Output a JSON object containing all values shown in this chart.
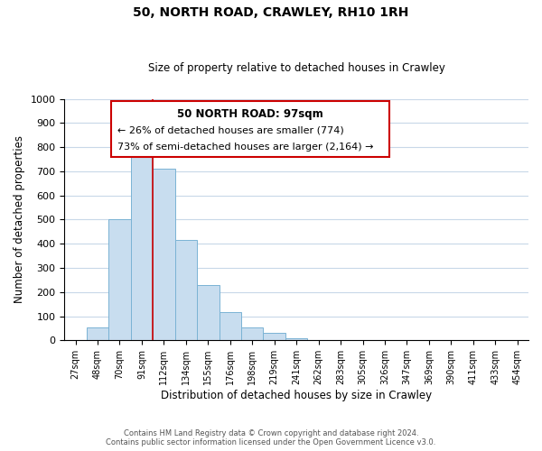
{
  "title": "50, NORTH ROAD, CRAWLEY, RH10 1RH",
  "subtitle": "Size of property relative to detached houses in Crawley",
  "xlabel": "Distribution of detached houses by size in Crawley",
  "ylabel": "Number of detached properties",
  "bin_labels": [
    "27sqm",
    "48sqm",
    "70sqm",
    "91sqm",
    "112sqm",
    "134sqm",
    "155sqm",
    "176sqm",
    "198sqm",
    "219sqm",
    "241sqm",
    "262sqm",
    "283sqm",
    "305sqm",
    "326sqm",
    "347sqm",
    "369sqm",
    "390sqm",
    "411sqm",
    "433sqm",
    "454sqm"
  ],
  "bar_values": [
    0,
    55,
    500,
    820,
    710,
    415,
    230,
    118,
    55,
    32,
    10,
    0,
    0,
    0,
    0,
    0,
    0,
    0,
    0,
    0,
    0
  ],
  "bar_color": "#c8ddef",
  "bar_edge_color": "#7ab3d4",
  "ylim": [
    0,
    1000
  ],
  "yticks": [
    0,
    100,
    200,
    300,
    400,
    500,
    600,
    700,
    800,
    900,
    1000
  ],
  "vline_x_index": 3.5,
  "vline_color": "#cc0000",
  "annotation_lines": [
    "50 NORTH ROAD: 97sqm",
    "← 26% of detached houses are smaller (774)",
    "73% of semi-detached houses are larger (2,164) →"
  ],
  "footer_line1": "Contains HM Land Registry data © Crown copyright and database right 2024.",
  "footer_line2": "Contains public sector information licensed under the Open Government Licence v3.0.",
  "background_color": "#ffffff",
  "grid_color": "#c8d8e8",
  "figsize": [
    6.0,
    5.0
  ],
  "dpi": 100
}
